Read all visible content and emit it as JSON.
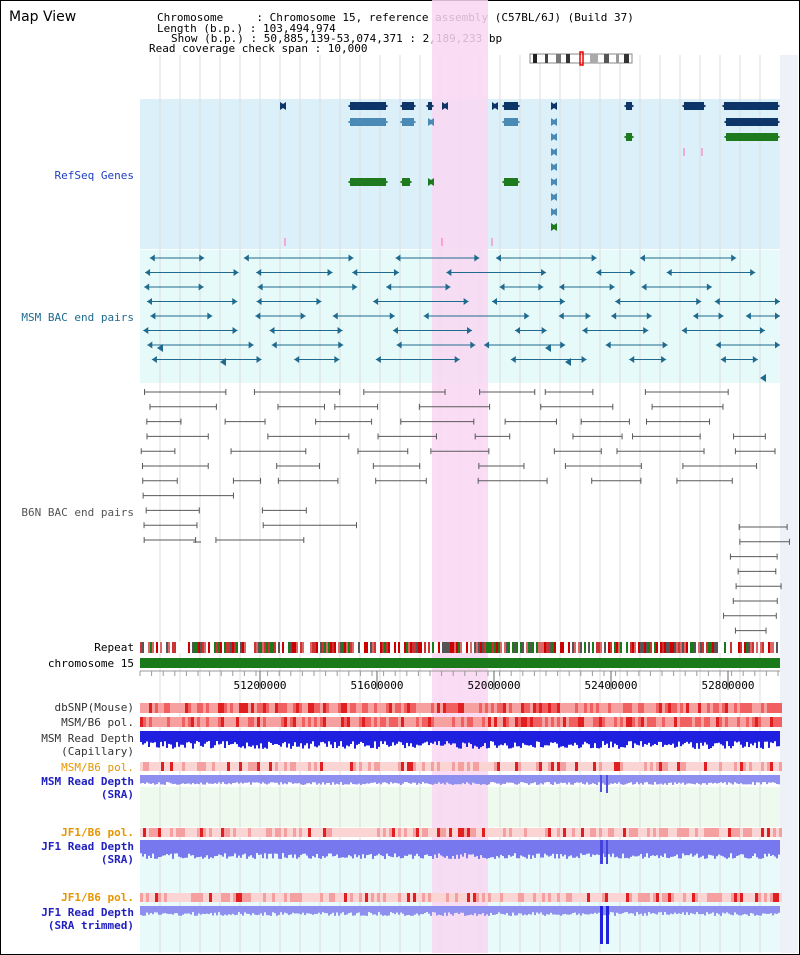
{
  "header": {
    "title": "Map View",
    "info": [
      "Chromosome     : Chromosome 15, reference assembly (C57BL/6J) (Build 37)",
      "Length (b.p.) : 103,494,974",
      "Show (b.p.) : 50,885,139-53,074,371 : 2,189,233 bp",
      "Read coverage check span : 10,000"
    ]
  },
  "tracks": {
    "refseq": "RefSeq Genes",
    "msm_bac": "MSM BAC end pairs",
    "b6n_bac": "B6N BAC end pairs",
    "repeat": "Repeat",
    "chromosome": "chromosome 15",
    "dbsnp": "dbSNP(Mouse)",
    "msm_pol1": "MSM/B6 pol.",
    "msm_depth_cap_1": "MSM Read Depth",
    "msm_depth_cap_2": "(Capillary)",
    "msm_pol2": "MSM/B6 pol.",
    "msm_depth_sra_1": "MSM Read Depth",
    "msm_depth_sra_2": "(SRA)",
    "jf1_pol1": "JF1/B6 pol.",
    "jf1_depth_sra_1": "JF1 Read Depth",
    "jf1_depth_sra_2": "(SRA)",
    "jf1_pol2": "JF1/B6 pol.",
    "jf1_depth_trim_1": "JF1 Read Depth",
    "jf1_depth_trim_2": "(SRA trimmed)"
  },
  "axis": {
    "ticks": [
      "51200000",
      "51600000",
      "52000000",
      "52400000",
      "52800000"
    ]
  },
  "colors": {
    "refseq_bg": "#dcf0fa",
    "bac_bg": "#e6fafa",
    "highlight": "#f9d7f2",
    "gene_blue": "#0e3568",
    "gene_mid": "#4a8ab5",
    "gene_green": "#1d7a1d",
    "bac_teal": "#1f6a8e",
    "b6n_gray": "#5a5a5a",
    "chrom_green": "#1a7a1a",
    "pol_red": "#f28080",
    "depth_blue": "#1f1fe0",
    "depth_light": "#8f8ff0"
  }
}
